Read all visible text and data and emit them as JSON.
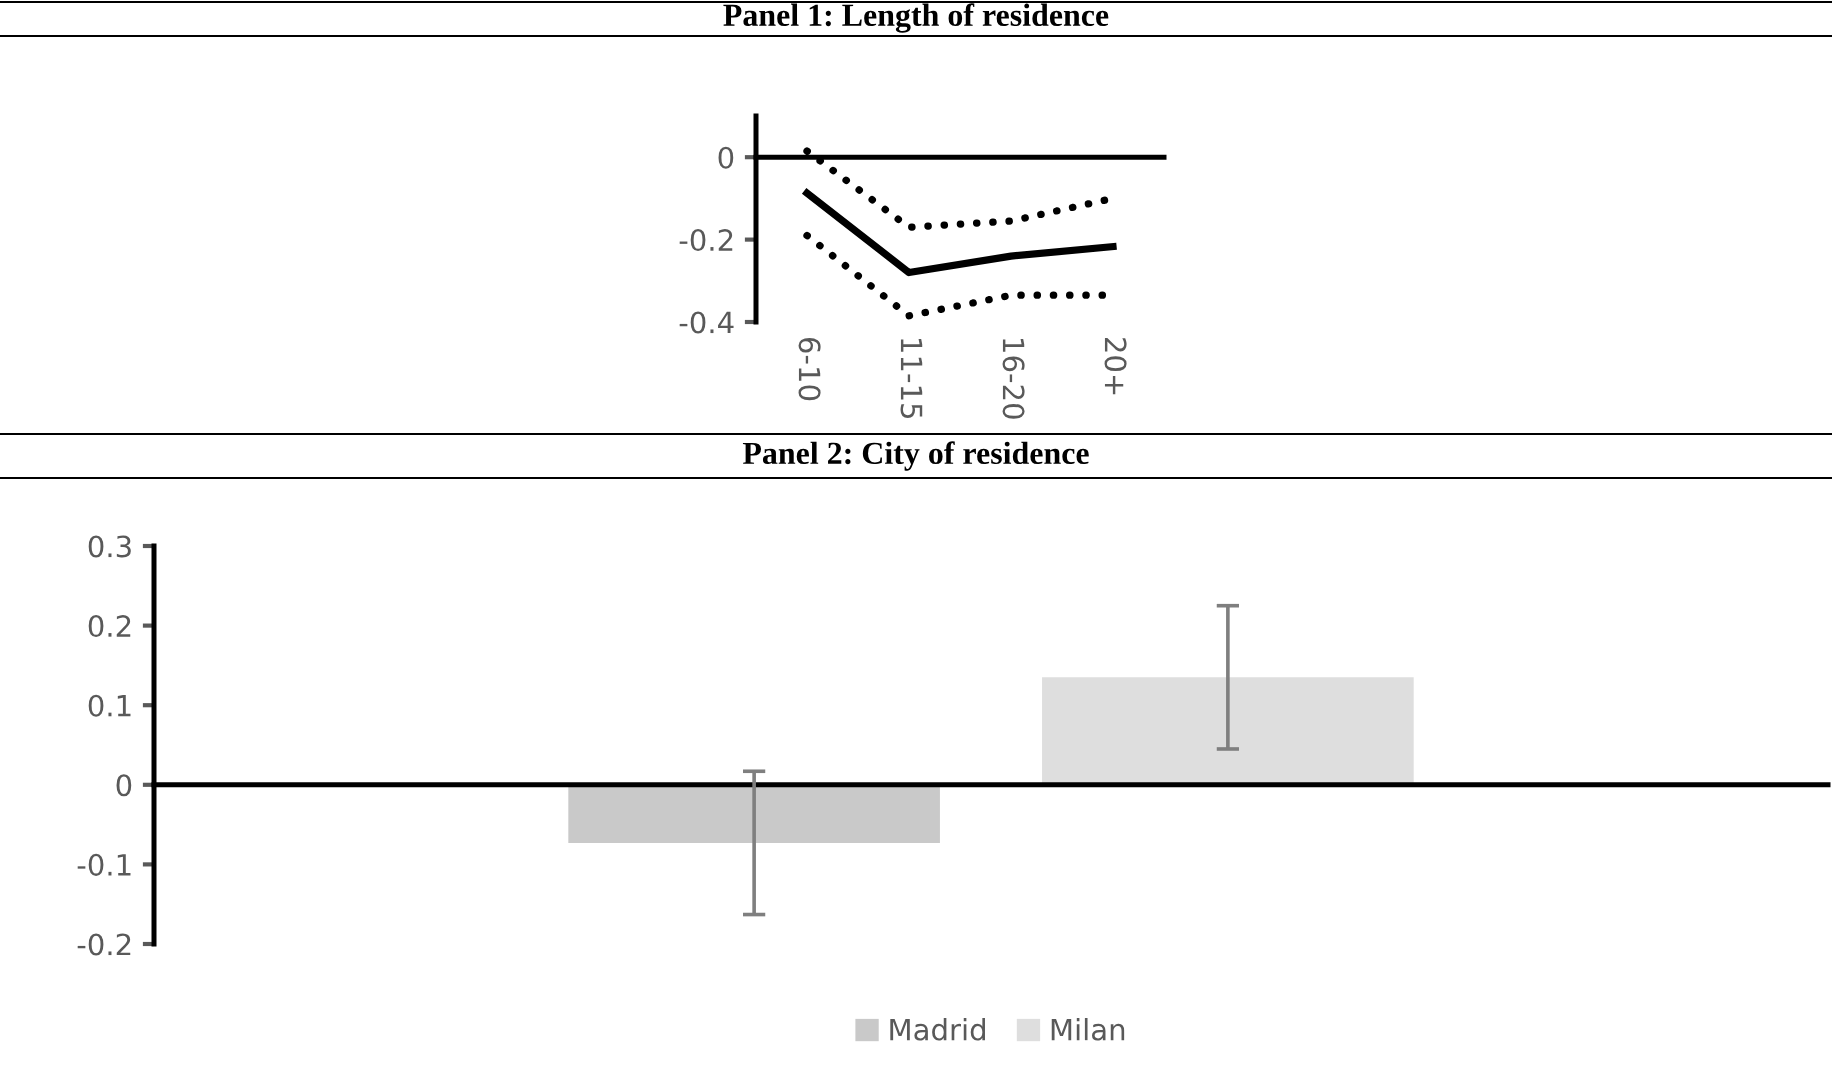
{
  "chart_data": [
    {
      "type": "line",
      "title": "Panel 1: Length of residence",
      "categories": [
        "6-10",
        "11-15",
        "16-20",
        "20+"
      ],
      "series": [
        {
          "color": "#000000",
          "line_style": "dotted",
          "values": [
            0.015,
            -0.17,
            -0.155,
            -0.1
          ]
        },
        {
          "color": "#000000",
          "line_style": "solid",
          "values": [
            -0.087,
            -0.28,
            -0.24,
            -0.217
          ]
        },
        {
          "color": "#000000",
          "line_style": "dotted",
          "values": [
            -0.19,
            -0.385,
            -0.335,
            -0.335
          ]
        }
      ],
      "ylim": [
        -0.4,
        0.1
      ],
      "yticks": [
        -0.4,
        -0.2,
        0
      ],
      "marker": "none"
    },
    {
      "type": "bar",
      "title": "Panel 2: City of residence",
      "categories": [
        null
      ],
      "series": [
        {
          "name": "Madrid",
          "color": "#c9c9c9",
          "values": [
            -0.073
          ],
          "errors": [
            0.09
          ]
        },
        {
          "name": "Milan",
          "color": "#dedede",
          "values": [
            0.135
          ],
          "errors": [
            0.09
          ]
        }
      ],
      "ylim": [
        -0.2,
        0.3
      ],
      "yticks": [
        -0.2,
        -0.1,
        0,
        0.1,
        0.2,
        0.3
      ],
      "legend": "bottom"
    }
  ]
}
